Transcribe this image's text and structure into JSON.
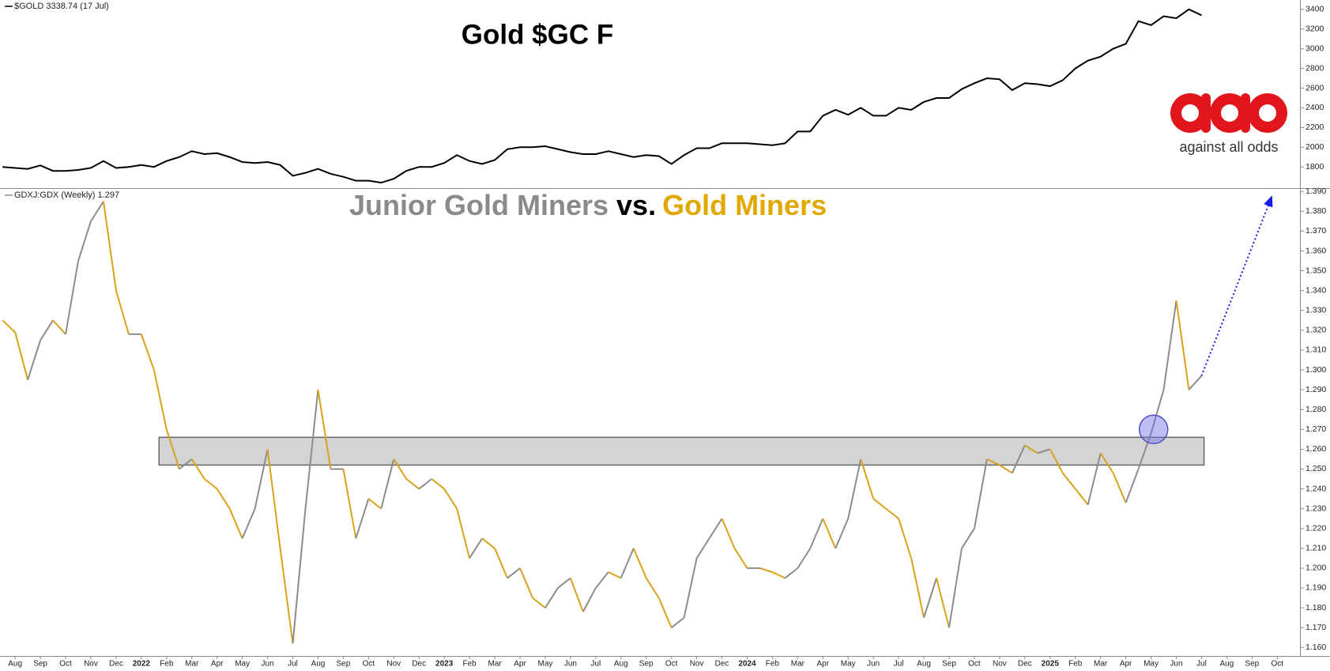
{
  "chart_data": [
    {
      "type": "line",
      "title": "Gold $GC F",
      "legend": "$GOLD 3338.74 (17 Jul)",
      "color": "#000000",
      "x": [
        -0.5,
        0,
        0.5,
        1,
        1.5,
        2,
        2.5,
        3,
        3.5,
        4,
        4.5,
        5,
        5.5,
        6,
        6.5,
        7,
        7.5,
        8,
        8.5,
        9,
        9.5,
        10,
        10.5,
        11,
        11.5,
        12,
        12.5,
        13,
        13.5,
        14,
        14.5,
        15,
        15.5,
        16,
        16.5,
        17,
        17.5,
        18,
        18.5,
        19,
        19.5,
        20,
        20.5,
        21,
        21.5,
        22,
        22.5,
        23,
        23.5,
        24,
        24.5,
        25,
        25.5,
        26,
        26.5,
        27,
        27.5,
        28,
        28.5,
        29,
        29.5,
        30,
        30.5,
        31,
        31.5,
        32,
        32.5,
        33,
        33.5,
        34,
        34.5,
        35,
        35.5,
        36,
        36.5,
        37,
        37.5,
        38,
        38.5,
        39,
        39.5,
        40,
        40.5,
        41,
        41.5,
        42,
        42.5,
        43,
        43.5,
        44,
        44.5,
        45,
        45.5,
        46,
        46.5,
        47
      ],
      "values": [
        1800,
        1790,
        1780,
        1815,
        1760,
        1760,
        1770,
        1790,
        1860,
        1790,
        1800,
        1820,
        1800,
        1860,
        1900,
        1960,
        1930,
        1940,
        1900,
        1850,
        1840,
        1850,
        1820,
        1710,
        1740,
        1780,
        1730,
        1700,
        1660,
        1660,
        1640,
        1680,
        1760,
        1800,
        1800,
        1840,
        1920,
        1860,
        1830,
        1870,
        1980,
        2000,
        2000,
        2010,
        1980,
        1950,
        1930,
        1930,
        1960,
        1930,
        1900,
        1920,
        1910,
        1830,
        1920,
        1990,
        1990,
        2040,
        2040,
        2040,
        2030,
        2020,
        2040,
        2160,
        2160,
        2320,
        2380,
        2330,
        2400,
        2320,
        2320,
        2400,
        2380,
        2460,
        2500,
        2500,
        2590,
        2650,
        2700,
        2690,
        2580,
        2650,
        2640,
        2620,
        2680,
        2800,
        2880,
        2920,
        3000,
        3050,
        3280,
        3240,
        3330,
        3310,
        3400,
        3340
      ],
      "xlim": [
        -0.6,
        50.9
      ],
      "ylim": [
        1585,
        3495
      ],
      "yticks": [
        1800,
        2000,
        2200,
        2400,
        2600,
        2800,
        3000,
        3200,
        3400
      ],
      "logo": "against all odds"
    },
    {
      "type": "line",
      "title_parts": [
        "Junior Gold Miners",
        "vs.",
        "Gold Miners"
      ],
      "legend": "GDXJ:GDX (Weekly) 1.297",
      "up_color": "#8c8c8c",
      "down_color": "#d9a21b",
      "x": [
        -0.5,
        0,
        0.5,
        1,
        1.5,
        2,
        2.5,
        3,
        3.5,
        4,
        4.5,
        5,
        5.5,
        6,
        6.5,
        7,
        7.5,
        8,
        8.5,
        9,
        9.5,
        10,
        10.5,
        11,
        11.5,
        12,
        12.5,
        13,
        13.5,
        14,
        14.5,
        15,
        15.5,
        16,
        16.5,
        17,
        17.5,
        18,
        18.5,
        19,
        19.5,
        20,
        20.5,
        21,
        21.5,
        22,
        22.5,
        23,
        23.5,
        24,
        24.5,
        25,
        25.5,
        26,
        26.5,
        27,
        27.5,
        28,
        28.5,
        29,
        29.5,
        30,
        30.5,
        31,
        31.5,
        32,
        32.5,
        33,
        33.5,
        34,
        34.5,
        35,
        35.5,
        36,
        36.5,
        37,
        37.5,
        38,
        38.5,
        39,
        39.5,
        40,
        40.5,
        41,
        41.5,
        42,
        42.5,
        43,
        43.5,
        44,
        44.5,
        45,
        45.5,
        46,
        46.5,
        47
      ],
      "values": [
        1.325,
        1.319,
        1.295,
        1.315,
        1.325,
        1.318,
        1.355,
        1.375,
        1.385,
        1.34,
        1.318,
        1.318,
        1.3,
        1.27,
        1.25,
        1.255,
        1.245,
        1.24,
        1.23,
        1.215,
        1.23,
        1.26,
        1.21,
        1.162,
        1.23,
        1.29,
        1.25,
        1.25,
        1.215,
        1.235,
        1.23,
        1.255,
        1.245,
        1.24,
        1.245,
        1.24,
        1.23,
        1.205,
        1.215,
        1.21,
        1.195,
        1.2,
        1.185,
        1.18,
        1.19,
        1.195,
        1.178,
        1.19,
        1.198,
        1.195,
        1.21,
        1.195,
        1.185,
        1.17,
        1.175,
        1.205,
        1.215,
        1.225,
        1.21,
        1.2,
        1.2,
        1.198,
        1.195,
        1.2,
        1.21,
        1.225,
        1.21,
        1.225,
        1.255,
        1.235,
        1.23,
        1.225,
        1.205,
        1.175,
        1.195,
        1.17,
        1.21,
        1.22,
        1.255,
        1.252,
        1.248,
        1.262,
        1.258,
        1.26,
        1.248,
        1.24,
        1.232,
        1.258,
        1.248,
        1.233,
        1.25,
        1.268,
        1.29,
        1.335,
        1.29,
        1.297
      ],
      "xlim": [
        -0.6,
        50.9
      ],
      "ylim": [
        1.1557,
        1.3913
      ],
      "yticks": [
        {
          "value": 1.16,
          "label": "1.160"
        },
        {
          "value": 1.17,
          "label": "1.170"
        },
        {
          "value": 1.18,
          "label": "1.180"
        },
        {
          "value": 1.19,
          "label": "1.190"
        },
        {
          "value": 1.2,
          "label": "1.200"
        },
        {
          "value": 1.21,
          "label": "1.210"
        },
        {
          "value": 1.22,
          "label": "1.220"
        },
        {
          "value": 1.23,
          "label": "1.230"
        },
        {
          "value": 1.24,
          "label": "1.240"
        },
        {
          "value": 1.25,
          "label": "1.250"
        },
        {
          "value": 1.26,
          "label": "1.260"
        },
        {
          "value": 1.27,
          "label": "1.270"
        },
        {
          "value": 1.28,
          "label": "1.280"
        },
        {
          "value": 1.29,
          "label": "1.290"
        },
        {
          "value": 1.3,
          "label": "1.300"
        },
        {
          "value": 1.31,
          "label": "1.310"
        },
        {
          "value": 1.32,
          "label": "1.320"
        },
        {
          "value": 1.33,
          "label": "1.330"
        },
        {
          "value": 1.34,
          "label": "1.340"
        },
        {
          "value": 1.35,
          "label": "1.350"
        },
        {
          "value": 1.36,
          "label": "1.360"
        },
        {
          "value": 1.37,
          "label": "1.370"
        },
        {
          "value": 1.38,
          "label": "1.380"
        },
        {
          "value": 1.39,
          "label": "1.390"
        }
      ],
      "xticks": [
        {
          "value": 0,
          "label": "Aug"
        },
        {
          "value": 1,
          "label": "Sep"
        },
        {
          "value": 2,
          "label": "Oct"
        },
        {
          "value": 3,
          "label": "Nov"
        },
        {
          "value": 4,
          "label": "Dec"
        },
        {
          "value": 5,
          "label": "2022"
        },
        {
          "value": 6,
          "label": "Feb"
        },
        {
          "value": 7,
          "label": "Mar"
        },
        {
          "value": 8,
          "label": "Apr"
        },
        {
          "value": 9,
          "label": "May"
        },
        {
          "value": 10,
          "label": "Jun"
        },
        {
          "value": 11,
          "label": "Jul"
        },
        {
          "value": 12,
          "label": "Aug"
        },
        {
          "value": 13,
          "label": "Sep"
        },
        {
          "value": 14,
          "label": "Oct"
        },
        {
          "value": 15,
          "label": "Nov"
        },
        {
          "value": 16,
          "label": "Dec"
        },
        {
          "value": 17,
          "label": "2023"
        },
        {
          "value": 18,
          "label": "Feb"
        },
        {
          "value": 19,
          "label": "Mar"
        },
        {
          "value": 20,
          "label": "Apr"
        },
        {
          "value": 21,
          "label": "May"
        },
        {
          "value": 22,
          "label": "Jun"
        },
        {
          "value": 23,
          "label": "Jul"
        },
        {
          "value": 24,
          "label": "Aug"
        },
        {
          "value": 25,
          "label": "Sep"
        },
        {
          "value": 26,
          "label": "Oct"
        },
        {
          "value": 27,
          "label": "Nov"
        },
        {
          "value": 28,
          "label": "Dec"
        },
        {
          "value": 29,
          "label": "2024"
        },
        {
          "value": 30,
          "label": "Feb"
        },
        {
          "value": 31,
          "label": "Mar"
        },
        {
          "value": 32,
          "label": "Apr"
        },
        {
          "value": 33,
          "label": "May"
        },
        {
          "value": 34,
          "label": "Jun"
        },
        {
          "value": 35,
          "label": "Jul"
        },
        {
          "value": 36,
          "label": "Aug"
        },
        {
          "value": 37,
          "label": "Sep"
        },
        {
          "value": 38,
          "label": "Oct"
        },
        {
          "value": 39,
          "label": "Nov"
        },
        {
          "value": 40,
          "label": "Dec"
        },
        {
          "value": 41,
          "label": "2025"
        },
        {
          "value": 42,
          "label": "Feb"
        },
        {
          "value": 43,
          "label": "Mar"
        },
        {
          "value": 44,
          "label": "Apr"
        },
        {
          "value": 45,
          "label": "May"
        },
        {
          "value": 46,
          "label": "Jun"
        },
        {
          "value": 47,
          "label": "Jul"
        },
        {
          "value": 48,
          "label": "Aug"
        },
        {
          "value": 49,
          "label": "Sep"
        },
        {
          "value": 50,
          "label": "Oct"
        }
      ],
      "annotations": {
        "zone": {
          "x": [
            5.7,
            47.1
          ],
          "y": [
            1.252,
            1.266
          ]
        },
        "circle": {
          "x": 45.1,
          "y": 1.27
        },
        "arrow": {
          "x": [
            47,
            49.8
          ],
          "y": [
            1.297,
            1.388
          ]
        }
      }
    }
  ]
}
